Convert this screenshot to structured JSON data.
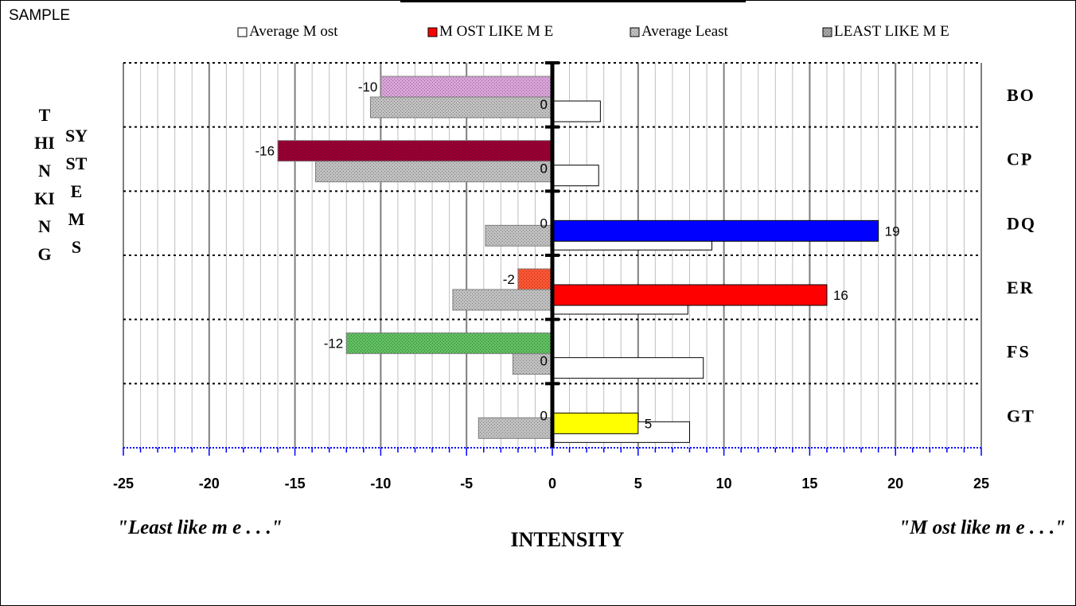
{
  "page": {
    "sample_label": "SAMPLE"
  },
  "chart_data": {
    "type": "bar",
    "orientation": "horizontal",
    "categories": [
      "BO",
      "CP",
      "DQ",
      "ER",
      "FS",
      "GT"
    ],
    "series": [
      {
        "name": "Average Most",
        "values": [
          2.8,
          2.7,
          9.3,
          7.9,
          8.8,
          8.0
        ],
        "color": "#ffffff"
      },
      {
        "name": "MOST LIKE ME",
        "values": [
          0,
          0,
          19,
          16,
          0,
          5
        ],
        "color": "#ff0000"
      },
      {
        "name": "Average Least",
        "values": [
          -10.6,
          -13.8,
          -3.9,
          -5.8,
          -2.3,
          -4.3
        ],
        "color": "#c0c0c0"
      },
      {
        "name": "LEAST LIKE ME",
        "values": [
          -10,
          -16,
          0,
          -2,
          -12,
          0
        ],
        "color": "#a6a6a6"
      }
    ],
    "bar_colors": {
      "most_like_me": [
        "#ffffff",
        "#ffffff",
        "#0000ff",
        "#ff0000",
        "#ffffff",
        "#ffff00"
      ],
      "least_like_me": [
        "#d9a3d9",
        "#990033",
        "#ffffff",
        "#ff5533",
        "#5fbf5f",
        "#ffffff"
      ]
    },
    "data_labels": {
      "most_like_me": [
        "0",
        "0",
        "19",
        "16",
        "0",
        "5"
      ],
      "least_like_me": [
        "-10",
        "-16",
        "0",
        "-2",
        "-12",
        "0"
      ]
    },
    "legend": [
      "Average Most",
      "MOST LIKE ME",
      "Average Least",
      "LEAST LIKE ME"
    ],
    "legend_display": [
      "Average M ost",
      "M OST LIKE M E",
      "Average Least",
      "LEAST LIKE M E"
    ],
    "legend_placement": "top",
    "xlim": [
      -25,
      25
    ],
    "x_ticks": [
      -25,
      -20,
      -15,
      -10,
      -5,
      0,
      5,
      10,
      15,
      20,
      25
    ],
    "tick_labels": [
      "-25",
      "-20",
      "-15",
      "-10",
      "-5",
      "0",
      "5",
      "10",
      "15",
      "20",
      "25"
    ],
    "minor_gridlines": "every 1 unit",
    "xlabel": "INTENSITY",
    "left_annotation": "\"Least like m e . . .\"",
    "right_annotation": "\"M ost like m e . . .\"",
    "left_title_1": "THINKING",
    "left_title_2": "SYSTEMS"
  }
}
